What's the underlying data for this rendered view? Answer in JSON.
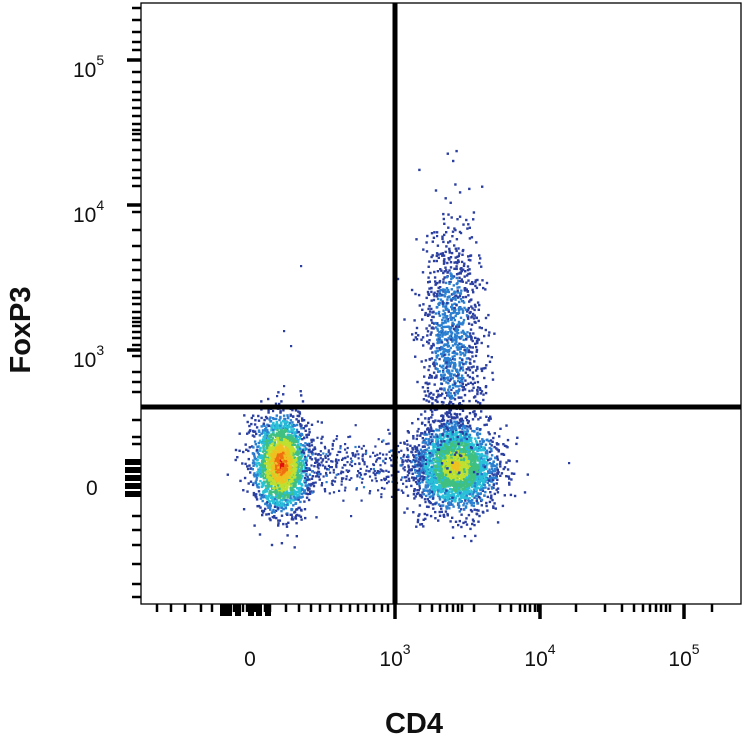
{
  "chart_data": {
    "type": "scatter",
    "plot_style": "flow-cytometry density dot plot",
    "xlabel": "CD4",
    "ylabel": "FoxP3",
    "x_scale": "biexponential",
    "y_scale": "biexponential",
    "x_ticks": [
      {
        "value": 0,
        "base": "0",
        "exp": ""
      },
      {
        "value": 1000,
        "base": "10",
        "exp": "3"
      },
      {
        "value": 10000,
        "base": "10",
        "exp": "4"
      },
      {
        "value": 100000,
        "base": "10",
        "exp": "5"
      }
    ],
    "y_ticks": [
      {
        "value": 0,
        "base": "0",
        "exp": ""
      },
      {
        "value": 1000,
        "base": "10",
        "exp": "3"
      },
      {
        "value": 10000,
        "base": "10",
        "exp": "4"
      },
      {
        "value": 100000,
        "base": "10",
        "exp": "5"
      }
    ],
    "quadrant_gate": {
      "x": 1000,
      "y": 500
    },
    "populations": [
      {
        "name": "CD4-negative",
        "center_x": 150,
        "center_y": 60,
        "density": "highest",
        "peak_color": "#e02010"
      },
      {
        "name": "CD4-positive FoxP3-negative",
        "center_x": 2300,
        "center_y": 60,
        "density": "high",
        "peak_color": "#b8d832"
      },
      {
        "name": "CD4-positive FoxP3-positive",
        "center_x": 2300,
        "center_y": 1500,
        "density": "low",
        "peak_color": "#3050b0"
      }
    ],
    "colorscale": [
      "#2b3fa0",
      "#2a7fd0",
      "#28c0d8",
      "#40c080",
      "#c0e030",
      "#f0c020",
      "#f07010",
      "#e01010"
    ],
    "grid": false,
    "legend": "none"
  }
}
